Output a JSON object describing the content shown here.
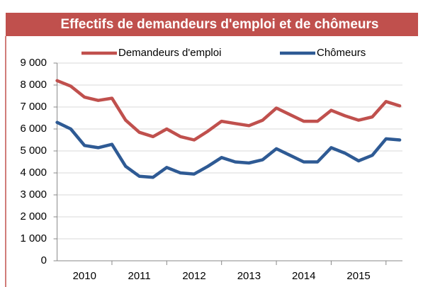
{
  "chart_data": {
    "type": "line",
    "title": "Effectifs de demandeurs d'emploi et de chômeurs",
    "x": [
      2010,
      2010.25,
      2010.5,
      2010.75,
      2011,
      2011.25,
      2011.5,
      2011.75,
      2012,
      2012.25,
      2012.5,
      2012.75,
      2013,
      2013.25,
      2013.5,
      2013.75,
      2014,
      2014.25,
      2014.5,
      2014.75,
      2015,
      2015.25,
      2015.5,
      2015.75,
      2016,
      2016.25
    ],
    "series": [
      {
        "name": "Demandeurs d'emploi",
        "color": "#c0504d",
        "values": [
          8200,
          7950,
          7450,
          7300,
          7400,
          6400,
          5850,
          5650,
          6000,
          5650,
          5500,
          5900,
          6350,
          6250,
          6150,
          6400,
          6950,
          6650,
          6350,
          6350,
          6850,
          6600,
          6400,
          6550,
          7250,
          7050
        ]
      },
      {
        "name": "Chômeurs",
        "color": "#2e5a94",
        "values": [
          6300,
          6000,
          5250,
          5150,
          5300,
          4300,
          3850,
          3800,
          4250,
          4000,
          3950,
          4300,
          4700,
          4500,
          4450,
          4600,
          5100,
          4800,
          4500,
          4500,
          5150,
          4900,
          4550,
          4800,
          5550,
          5500
        ]
      }
    ],
    "xlim": [
      2010,
      2016.3
    ],
    "xticks": [
      2011,
      2012,
      2013,
      2014,
      2015,
      2016
    ],
    "x_labels": [
      {
        "value": 2010.5,
        "label": "2010"
      },
      {
        "value": 2011.5,
        "label": "2011"
      },
      {
        "value": 2012.5,
        "label": "2012"
      },
      {
        "value": 2013.5,
        "label": "2013"
      },
      {
        "value": 2014.5,
        "label": "2014"
      },
      {
        "value": 2015.5,
        "label": "2015"
      }
    ],
    "ylim": [
      0,
      9000
    ],
    "yticks": [
      0,
      {
        "value": 1000,
        "label": "1 000"
      },
      {
        "value": 2000,
        "label": "2 000"
      },
      {
        "value": 3000,
        "label": "3 000"
      },
      {
        "value": 4000,
        "label": "4 000"
      },
      {
        "value": 5000,
        "label": "5 000"
      },
      {
        "value": 6000,
        "label": "6 000"
      },
      {
        "value": 7000,
        "label": "7 000"
      },
      {
        "value": 8000,
        "label": "8 000"
      },
      {
        "value": 9000,
        "label": "9 000"
      }
    ],
    "grid": true,
    "legend": "top"
  }
}
